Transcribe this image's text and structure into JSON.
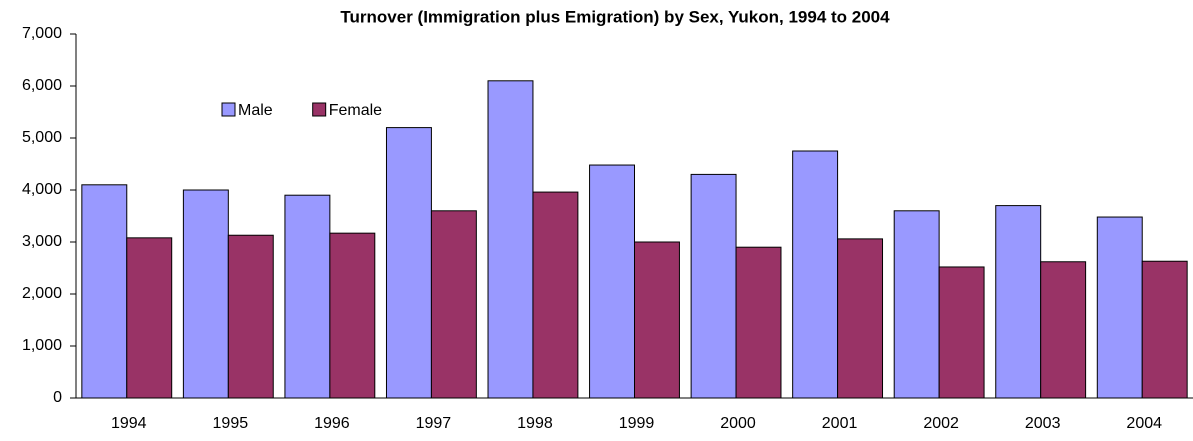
{
  "chart_data": {
    "type": "bar",
    "title": "Turnover (Immigration plus Emigration) by Sex, Yukon, 1994 to 2004",
    "categories": [
      "1994",
      "1995",
      "1996",
      "1997",
      "1998",
      "1999",
      "2000",
      "2001",
      "2002",
      "2003",
      "2004"
    ],
    "series": [
      {
        "name": "Male",
        "color": "#9999ff",
        "values": [
          4100,
          4000,
          3900,
          5200,
          6100,
          4480,
          4300,
          4750,
          3600,
          3700,
          3480
        ]
      },
      {
        "name": "Female",
        "color": "#993366",
        "values": [
          3080,
          3130,
          3170,
          3600,
          3960,
          3000,
          2900,
          3060,
          2520,
          2620,
          2630
        ]
      }
    ],
    "ylim": [
      0,
      7000
    ],
    "yticks": [
      0,
      {
        "value": 1000,
        "label": "1,000"
      },
      {
        "value": 2000,
        "label": "2,000"
      },
      {
        "value": 3000,
        "label": "3,000"
      },
      {
        "value": 4000,
        "label": "4,000"
      },
      {
        "value": 5000,
        "label": "5,000"
      },
      {
        "value": 6000,
        "label": "6,000"
      },
      {
        "value": 7000,
        "label": "7,000"
      }
    ],
    "legend": "upper-left"
  }
}
